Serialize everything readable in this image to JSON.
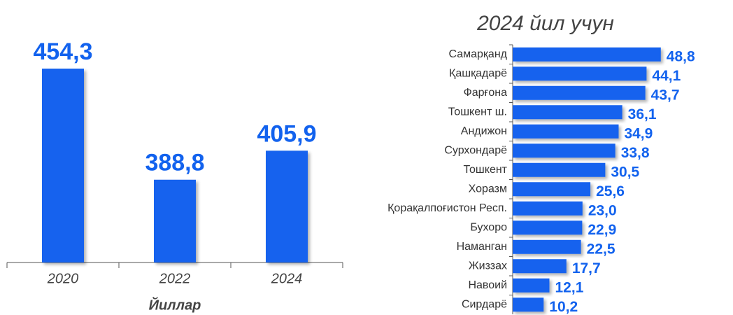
{
  "chart_data": [
    {
      "type": "bar",
      "x_label": "Йиллар",
      "categories": [
        "2020",
        "2022",
        "2024"
      ],
      "values": [
        454.3,
        388.8,
        405.9
      ],
      "value_labels": [
        "454,3",
        "388,8",
        "405,9"
      ],
      "color": "#1262ee",
      "ylim": [
        340,
        470
      ]
    },
    {
      "type": "barh",
      "title": "2024 йил учун",
      "categories": [
        "Самарқанд",
        "Қашқадарё",
        "Фарғона",
        "Тошкент ш.",
        "Андижон",
        "Сурхондарё",
        "Тошкент",
        "Хоразм",
        "Қорақалпоғистон Респ.",
        "Бухоро",
        "Наманган",
        "Жиззах",
        "Навоий",
        "Сирдарё"
      ],
      "values": [
        48.8,
        44.1,
        43.7,
        36.1,
        34.9,
        33.8,
        30.5,
        25.6,
        23.0,
        22.9,
        22.5,
        17.7,
        12.1,
        10.2
      ],
      "value_labels": [
        "48,8",
        "44,1",
        "43,7",
        "36,1",
        "34,9",
        "33,8",
        "30,5",
        "25,6",
        "23,0",
        "22,9",
        "22,5",
        "17,7",
        "12,1",
        "10,2"
      ],
      "color": "#1262ee",
      "xlim": [
        0,
        50
      ]
    }
  ]
}
